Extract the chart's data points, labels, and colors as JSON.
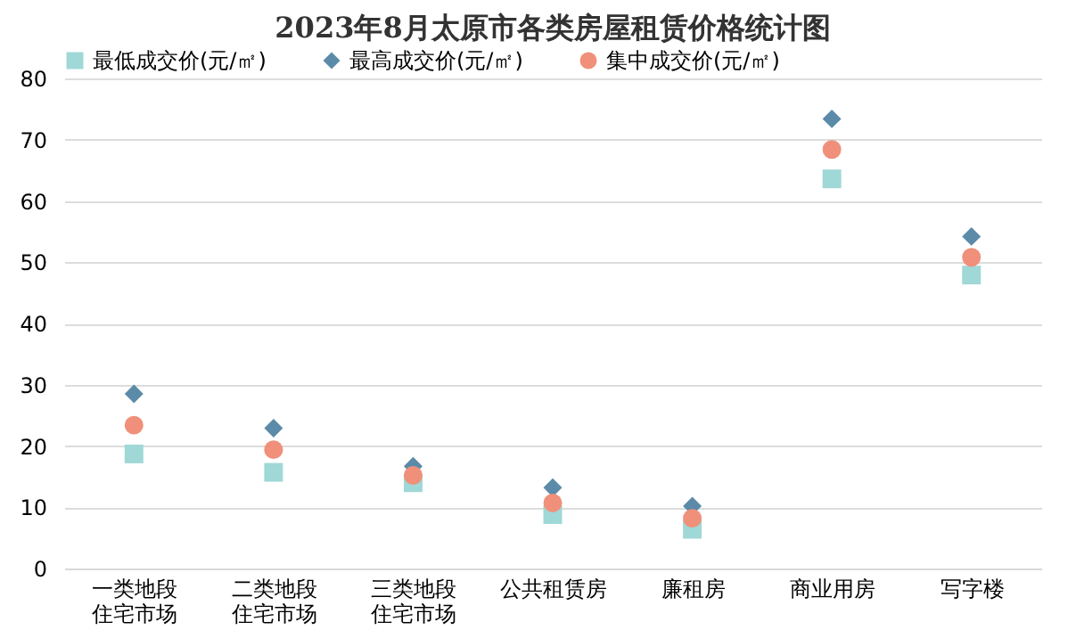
{
  "chart_data": {
    "type": "scatter",
    "title": "2023年8月太原市各类房屋租赁价格统计图",
    "categories": [
      "一类地段住宅市场",
      "二类地段住宅市场",
      "三类地段住宅市场",
      "公共租赁房",
      "廉租房",
      "商业用房",
      "写字楼"
    ],
    "series": [
      {
        "name": "最低成交价(元/㎡)",
        "color": "#9fd8d6",
        "marker": "square",
        "values": [
          18.7,
          15.7,
          14,
          8.8,
          6.4,
          63.6,
          47.9
        ]
      },
      {
        "name": "最高成交价(元/㎡)",
        "color": "#5b8ba8",
        "marker": "diamond",
        "values": [
          28.5,
          22.9,
          16.7,
          13.2,
          10.2,
          73.4,
          54.2
        ]
      },
      {
        "name": "集中成交价(元/㎡)",
        "color": "#f0907a",
        "marker": "circle",
        "values": [
          23.4,
          19.4,
          15.2,
          10.7,
          8.2,
          68.4,
          50.8
        ]
      }
    ],
    "ylim": [
      0,
      80
    ],
    "yticks": [
      0,
      10,
      20,
      30,
      40,
      50,
      60,
      70,
      80
    ],
    "grid": "y",
    "legend": "top"
  }
}
